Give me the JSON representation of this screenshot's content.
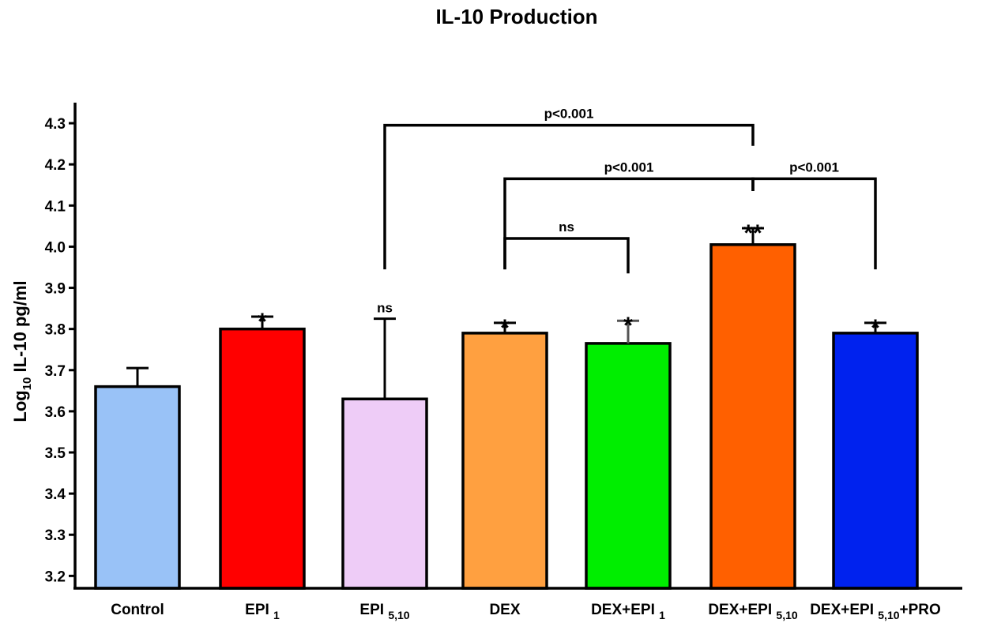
{
  "chart_data": {
    "type": "bar",
    "title": "IL-10 Production",
    "ylabel": {
      "prefix": "Log",
      "sub": "10",
      "suffix": " IL-10 pg/ml"
    },
    "xlabel": "",
    "ylim": [
      3.17,
      4.35
    ],
    "yticks": [
      3.2,
      3.3,
      3.4,
      3.5,
      3.6,
      3.7,
      3.8,
      3.9,
      4.0,
      4.1,
      4.2,
      4.3
    ],
    "grid": false,
    "legend": "none",
    "categories": [
      {
        "main": "Control",
        "sub": "",
        "suffix": ""
      },
      {
        "main": "EPI ",
        "sub": "1",
        "suffix": ""
      },
      {
        "main": "EPI ",
        "sub": "5,10",
        "suffix": ""
      },
      {
        "main": "DEX",
        "sub": "",
        "suffix": ""
      },
      {
        "main": "DEX+EPI ",
        "sub": "1",
        "suffix": ""
      },
      {
        "main": "DEX+EPI ",
        "sub": "5,10",
        "suffix": ""
      },
      {
        "main": "DEX+EPI ",
        "sub": "5,10",
        "suffix": "+PRO"
      }
    ],
    "values": [
      3.66,
      3.8,
      3.63,
      3.79,
      3.765,
      4.005,
      3.79
    ],
    "errors": [
      0.045,
      0.03,
      0.195,
      0.025,
      0.055,
      0.04,
      0.025
    ],
    "colors": [
      "#99c2f7",
      "#ff0000",
      "#eeccf7",
      "#ffa040",
      "#00ee00",
      "#ff6000",
      "#0022ee"
    ],
    "errorbar_colors": [
      "#000000",
      "#000000",
      "#000000",
      "#000000",
      "#555555",
      "#000000",
      "#000000"
    ],
    "significance_marks": [
      "",
      "*",
      "ns",
      "*",
      "*",
      "**",
      "*"
    ],
    "brackets": [
      {
        "label": "p<0.001",
        "from": 2,
        "to": 5,
        "y": 4.295,
        "left_drop_to": 3.945,
        "right_drop_to": 4.245
      },
      {
        "label": "p<0.001",
        "from": 3,
        "to": 5,
        "y": 4.165,
        "left_drop_to": 3.945,
        "right_drop_to": 4.135
      },
      {
        "label": "p<0.001",
        "from": 5,
        "to": 6,
        "y": 4.165,
        "left_drop_to": 4.135,
        "right_drop_to": 3.945
      },
      {
        "label": "ns",
        "from": 3,
        "to": 4,
        "y": 4.02,
        "left_drop_to": 3.945,
        "right_drop_to": 3.935
      }
    ]
  }
}
